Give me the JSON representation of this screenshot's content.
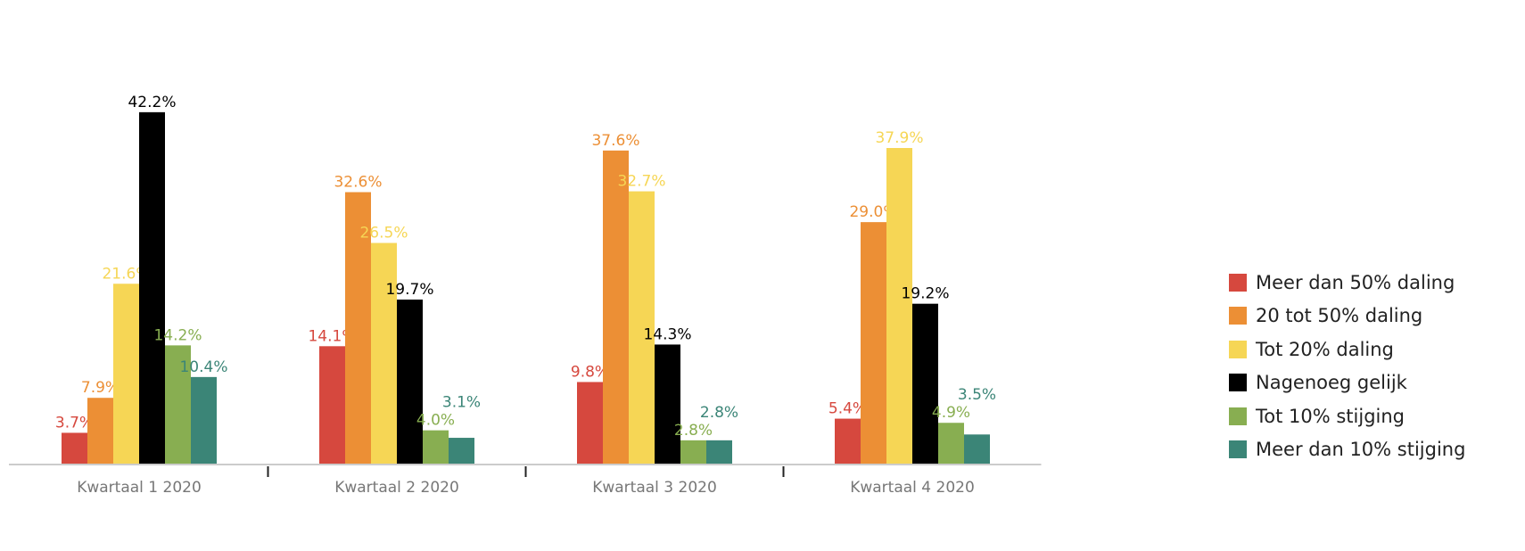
{
  "chart_data": {
    "type": "bar",
    "title": "",
    "xlabel": "",
    "ylabel": "",
    "ylim": [
      0,
      45
    ],
    "grid": false,
    "legend_position": "right",
    "categories": [
      "Kwartaal 1 2020",
      "Kwartaal 2 2020",
      "Kwartaal 3 2020",
      "Kwartaal 4 2020"
    ],
    "series": [
      {
        "name": "Meer dan 50% daling",
        "color": "#d6483e",
        "values": [
          3.7,
          14.1,
          9.8,
          5.4
        ],
        "labels": [
          "3.7%",
          "14.1%",
          "9.8%",
          "5.4%"
        ]
      },
      {
        "name": "20 tot 50% daling",
        "color": "#ec8f35",
        "values": [
          7.9,
          32.6,
          37.6,
          29.0
        ],
        "labels": [
          "7.9%",
          "32.6%",
          "37.6%",
          "29.0%"
        ]
      },
      {
        "name": "Tot 20% daling",
        "color": "#f6d655",
        "values": [
          21.6,
          26.5,
          32.7,
          37.9
        ],
        "labels": [
          "21.6%",
          "26.5%",
          "32.7%",
          "37.9%"
        ]
      },
      {
        "name": "Nagenoeg gelijk",
        "color": "#000000",
        "values": [
          42.2,
          19.7,
          14.3,
          19.2
        ],
        "labels": [
          "42.2%",
          "19.7%",
          "14.3%",
          "19.2%"
        ]
      },
      {
        "name": "Tot 10% stijging",
        "color": "#88ae51",
        "values": [
          14.2,
          4.0,
          2.8,
          4.9
        ],
        "labels": [
          "14.2%",
          "4.0%",
          "2.8%",
          "4.9%"
        ]
      },
      {
        "name": "Meer dan 10% stijging",
        "color": "#3b8577",
        "values": [
          10.4,
          3.1,
          2.8,
          3.5
        ],
        "labels": [
          "10.4%",
          "3.1%",
          "2.8%",
          "3.5%"
        ]
      }
    ]
  }
}
